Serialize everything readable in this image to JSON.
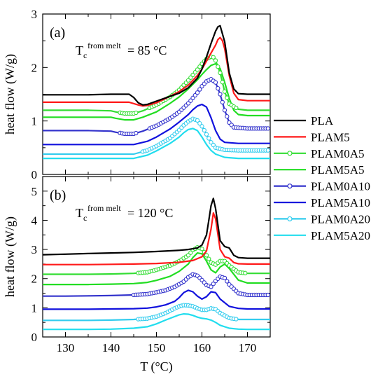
{
  "chart_data": {
    "type": "line",
    "xlabel": "T (°C)",
    "xlim": [
      125,
      175
    ],
    "xticks": [
      130,
      140,
      150,
      160,
      170
    ],
    "legend": {
      "placement": "right",
      "entries": [
        "PLA",
        "PLAM5",
        "PLAM0A5",
        "PLAM5A5",
        "PLAM0A10",
        "PLAM5A10",
        "PLAM0A20",
        "PLAM5A20"
      ]
    },
    "series_styles": [
      {
        "name": "PLA",
        "color": "#000000",
        "marker": false
      },
      {
        "name": "PLAM5",
        "color": "#ff1a1a",
        "marker": false
      },
      {
        "name": "PLAM0A5",
        "color": "#33dd33",
        "marker": true
      },
      {
        "name": "PLAM5A5",
        "color": "#22dd22",
        "marker": false
      },
      {
        "name": "PLAM0A10",
        "color": "#3333cc",
        "marker": true
      },
      {
        "name": "PLAM5A10",
        "color": "#1111dd",
        "marker": false
      },
      {
        "name": "PLAM0A20",
        "color": "#33ccee",
        "marker": true
      },
      {
        "name": "PLAM5A20",
        "color": "#22ddee",
        "marker": false
      }
    ],
    "panels": [
      {
        "label": "(a)",
        "annotation": {
          "main": "T",
          "sub": "c",
          "sup": "from melt",
          "rest": " = 85 °C"
        },
        "ylabel": "heat flow (W/g)",
        "ylim": [
          0,
          3
        ],
        "yticks": [
          0,
          1,
          2,
          3
        ],
        "series": [
          {
            "name": "PLA",
            "x": [
              125,
              130,
              135,
              140,
              144,
              145,
              146,
              147,
              148,
              150,
              152,
              155,
              157,
              159,
              160,
              161,
              162,
              163,
              163.5,
              164,
              165,
              166,
              167,
              168,
              170,
              175
            ],
            "y": [
              1.49,
              1.49,
              1.49,
              1.5,
              1.5,
              1.44,
              1.34,
              1.3,
              1.31,
              1.37,
              1.43,
              1.52,
              1.62,
              1.8,
              1.97,
              2.2,
              2.45,
              2.68,
              2.76,
              2.78,
              2.48,
              1.9,
              1.6,
              1.51,
              1.5,
              1.5
            ]
          },
          {
            "name": "PLAM5",
            "x": [
              125,
              130,
              135,
              140,
              144,
              146,
              147,
              148,
              150,
              152,
              155,
              157,
              159,
              160,
              161,
              162,
              163,
              163.5,
              164,
              164.5,
              165,
              166,
              167,
              168,
              170,
              175
            ],
            "y": [
              1.35,
              1.35,
              1.35,
              1.35,
              1.35,
              1.3,
              1.28,
              1.29,
              1.34,
              1.42,
              1.55,
              1.67,
              1.85,
              1.97,
              2.12,
              2.27,
              2.42,
              2.52,
              2.56,
              2.5,
              2.35,
              1.85,
              1.52,
              1.4,
              1.38,
              1.38
            ]
          },
          {
            "name": "PLAM0A5",
            "x": [
              125,
              130,
              135,
              140,
              141,
              143,
              145,
              147,
              150,
              153,
              155,
              157,
              159,
              160,
              161,
              162,
              162.5,
              163,
              164,
              165,
              166,
              168,
              170,
              175
            ],
            "y": [
              1.2,
              1.2,
              1.2,
              1.19,
              1.17,
              1.14,
              1.14,
              1.19,
              1.3,
              1.45,
              1.58,
              1.76,
              1.96,
              2.07,
              2.16,
              2.2,
              2.19,
              2.13,
              1.9,
              1.55,
              1.32,
              1.22,
              1.2,
              1.2
            ]
          },
          {
            "name": "PLAM5A5",
            "x": [
              125,
              130,
              135,
              140,
              141,
              143,
              145,
              147,
              150,
              153,
              155,
              157,
              159,
              160,
              161,
              162,
              163,
              164,
              165,
              166,
              167,
              168,
              170,
              175
            ],
            "y": [
              1.07,
              1.07,
              1.07,
              1.07,
              1.05,
              1.02,
              1.02,
              1.07,
              1.17,
              1.33,
              1.45,
              1.6,
              1.77,
              1.87,
              1.96,
              2.04,
              2.07,
              1.98,
              1.72,
              1.42,
              1.2,
              1.12,
              1.1,
              1.1
            ]
          },
          {
            "name": "PLAM0A10",
            "x": [
              125,
              130,
              135,
              140,
              141,
              143,
              145,
              147,
              150,
              153,
              155,
              157,
              159,
              160,
              161,
              162,
              163,
              164,
              165,
              166,
              167,
              170,
              175
            ],
            "y": [
              0.82,
              0.82,
              0.82,
              0.81,
              0.79,
              0.76,
              0.76,
              0.81,
              0.91,
              1.05,
              1.17,
              1.33,
              1.53,
              1.65,
              1.74,
              1.78,
              1.72,
              1.5,
              1.2,
              0.97,
              0.88,
              0.86,
              0.86
            ]
          },
          {
            "name": "PLAM5A10",
            "x": [
              125,
              130,
              135,
              140,
              142,
              145,
              148,
              150,
              153,
              155,
              157,
              158,
              159,
              160,
              161,
              162,
              163,
              164,
              165,
              168,
              170,
              175
            ],
            "y": [
              0.56,
              0.56,
              0.56,
              0.56,
              0.56,
              0.56,
              0.62,
              0.7,
              0.85,
              0.98,
              1.12,
              1.21,
              1.28,
              1.31,
              1.26,
              1.06,
              0.82,
              0.66,
              0.6,
              0.58,
              0.58,
              0.58
            ]
          },
          {
            "name": "PLAM0A20",
            "x": [
              125,
              130,
              135,
              140,
              142,
              145,
              148,
              150,
              153,
              155,
              156,
              157,
              158,
              159,
              160,
              161,
              162,
              163,
              165,
              168,
              170,
              175
            ],
            "y": [
              0.38,
              0.38,
              0.38,
              0.38,
              0.38,
              0.38,
              0.45,
              0.53,
              0.68,
              0.83,
              0.92,
              0.99,
              1.04,
              1.01,
              0.9,
              0.75,
              0.6,
              0.5,
              0.46,
              0.45,
              0.45,
              0.45
            ]
          },
          {
            "name": "PLAM5A20",
            "x": [
              125,
              130,
              135,
              140,
              142,
              145,
              148,
              150,
              153,
              155,
              156,
              157,
              158,
              159,
              160,
              161,
              162,
              163,
              165,
              168,
              170,
              175
            ],
            "y": [
              0.3,
              0.3,
              0.3,
              0.3,
              0.3,
              0.3,
              0.36,
              0.44,
              0.58,
              0.7,
              0.78,
              0.84,
              0.86,
              0.82,
              0.7,
              0.56,
              0.45,
              0.38,
              0.32,
              0.3,
              0.3,
              0.3
            ]
          }
        ]
      },
      {
        "label": "(b)",
        "annotation": {
          "main": "T",
          "sub": "c",
          "sup": "from melt",
          "rest": " = 120 °C"
        },
        "ylabel": "heat flow (W/g)",
        "ylim": [
          0,
          5.5
        ],
        "yticks": [
          0,
          1,
          2,
          3,
          4,
          5
        ],
        "series": [
          {
            "name": "PLA",
            "x": [
              125,
              130,
              135,
              140,
              145,
              150,
              155,
              157,
              159,
              160,
              161,
              161.5,
              162,
              162.5,
              163,
              164,
              165,
              166,
              167,
              168,
              170,
              175
            ],
            "y": [
              2.82,
              2.84,
              2.86,
              2.88,
              2.9,
              2.93,
              2.97,
              3.0,
              3.05,
              3.15,
              3.5,
              4.0,
              4.5,
              4.75,
              4.4,
              3.3,
              3.1,
              3.05,
              2.8,
              2.72,
              2.7,
              2.7
            ]
          },
          {
            "name": "PLAM5",
            "x": [
              125,
              130,
              135,
              140,
              145,
              150,
              155,
              158,
              160,
              161,
              162,
              162.5,
              163,
              164,
              165,
              166,
              167,
              168,
              170,
              175
            ],
            "y": [
              2.48,
              2.48,
              2.48,
              2.49,
              2.5,
              2.52,
              2.56,
              2.62,
              2.75,
              2.95,
              3.7,
              4.25,
              4.05,
              3.0,
              2.75,
              2.7,
              2.55,
              2.51,
              2.5,
              2.5
            ]
          },
          {
            "name": "PLAM0A5",
            "x": [
              125,
              130,
              135,
              140,
              145,
              148,
              150,
              153,
              155,
              157,
              158,
              159,
              160,
              161,
              162,
              163,
              164,
              165,
              166,
              168,
              170,
              175
            ],
            "y": [
              2.15,
              2.15,
              2.15,
              2.16,
              2.18,
              2.22,
              2.3,
              2.45,
              2.6,
              2.8,
              2.98,
              3.07,
              3.02,
              2.8,
              2.55,
              2.48,
              2.6,
              2.6,
              2.45,
              2.22,
              2.18,
              2.18
            ]
          },
          {
            "name": "PLAM5A5",
            "x": [
              125,
              130,
              135,
              140,
              145,
              148,
              150,
              153,
              155,
              157,
              158,
              159,
              160,
              161,
              162,
              163,
              164,
              165,
              166,
              168,
              170,
              175
            ],
            "y": [
              1.8,
              1.8,
              1.8,
              1.81,
              1.83,
              1.87,
              1.94,
              2.08,
              2.25,
              2.5,
              2.72,
              2.88,
              2.85,
              2.6,
              2.3,
              2.2,
              2.4,
              2.5,
              2.35,
              1.95,
              1.85,
              1.85
            ]
          },
          {
            "name": "PLAM0A10",
            "x": [
              125,
              130,
              135,
              140,
              145,
              148,
              150,
              152,
              154,
              156,
              157,
              158,
              159,
              160,
              161,
              162,
              163,
              164,
              165,
              166,
              168,
              170,
              175
            ],
            "y": [
              1.4,
              1.4,
              1.41,
              1.42,
              1.44,
              1.47,
              1.53,
              1.6,
              1.72,
              1.9,
              2.05,
              2.15,
              2.1,
              1.95,
              1.78,
              1.72,
              1.92,
              2.07,
              2.02,
              1.8,
              1.5,
              1.44,
              1.44
            ]
          },
          {
            "name": "PLAM5A10",
            "x": [
              125,
              130,
              135,
              140,
              145,
              148,
              150,
              152,
              154,
              155,
              156,
              157,
              158,
              159,
              160,
              161,
              162,
              163,
              164,
              166,
              168,
              170,
              175
            ],
            "y": [
              0.95,
              0.95,
              0.95,
              0.96,
              0.97,
              0.99,
              1.03,
              1.1,
              1.22,
              1.35,
              1.52,
              1.6,
              1.55,
              1.4,
              1.3,
              1.38,
              1.55,
              1.52,
              1.3,
              1.05,
              0.98,
              0.96,
              0.96
            ]
          },
          {
            "name": "PLAM0A20",
            "x": [
              125,
              130,
              135,
              140,
              145,
              148,
              150,
              152,
              154,
              155,
              156,
              157,
              158,
              159,
              160,
              161,
              162,
              163,
              164,
              166,
              168,
              170,
              175
            ],
            "y": [
              0.57,
              0.57,
              0.57,
              0.58,
              0.6,
              0.63,
              0.7,
              0.82,
              0.98,
              1.05,
              1.09,
              1.08,
              1.05,
              0.98,
              0.93,
              0.93,
              0.98,
              0.95,
              0.82,
              0.65,
              0.6,
              0.6,
              0.6
            ]
          },
          {
            "name": "PLAM5A20",
            "x": [
              125,
              130,
              135,
              140,
              145,
              148,
              150,
              152,
              154,
              155,
              156,
              157,
              158,
              159,
              160,
              161,
              162,
              163,
              164,
              166,
              168,
              170,
              175
            ],
            "y": [
              0.26,
              0.26,
              0.26,
              0.27,
              0.3,
              0.35,
              0.45,
              0.58,
              0.7,
              0.76,
              0.79,
              0.78,
              0.74,
              0.68,
              0.64,
              0.62,
              0.58,
              0.5,
              0.4,
              0.3,
              0.27,
              0.26,
              0.26
            ]
          }
        ]
      }
    ]
  }
}
